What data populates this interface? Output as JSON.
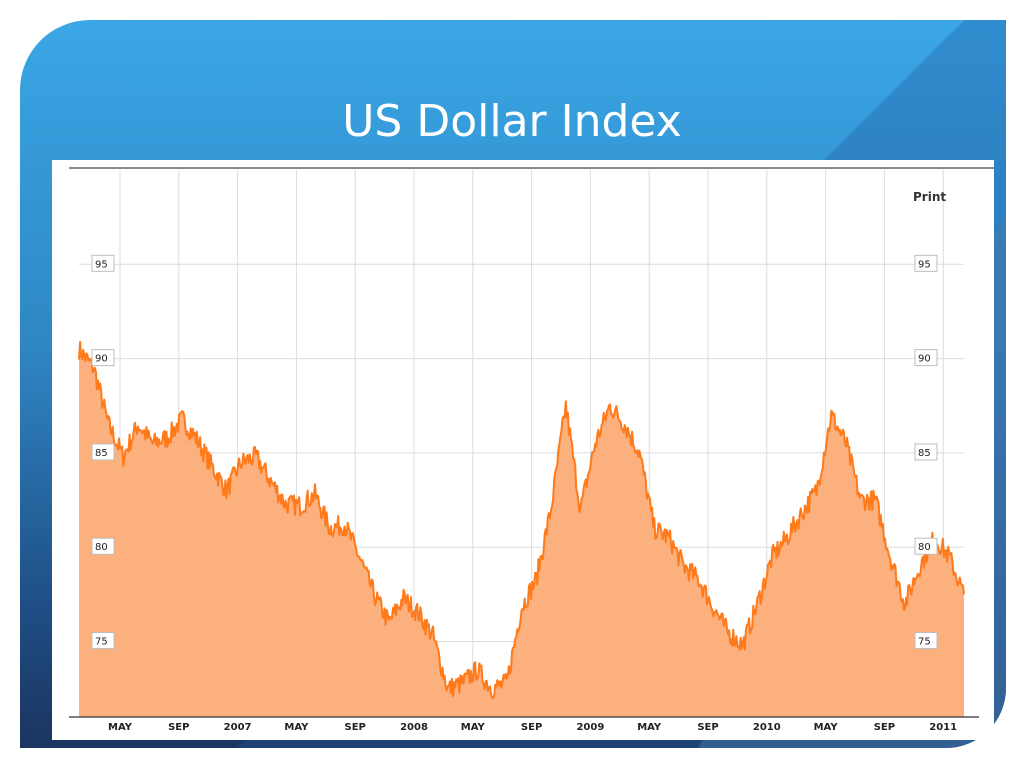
{
  "slide": {
    "title": "US Dollar Index"
  },
  "chart_data": {
    "type": "area",
    "title": "US Dollar Index",
    "xlabel": "",
    "ylabel": "",
    "ylim": [
      71,
      100
    ],
    "x_ticks": [
      "MAY",
      "SEP",
      "2007",
      "MAY",
      "SEP",
      "2008",
      "MAY",
      "SEP",
      "2009",
      "MAY",
      "SEP",
      "2010",
      "MAY",
      "SEP",
      "2011"
    ],
    "y_ticks": [
      95,
      90,
      85,
      80,
      75
    ],
    "grid": true,
    "print_label": "Print",
    "series": [
      {
        "color": "#ff7a1a",
        "fill": "#fbb07e",
        "x": [
          "Feb 2006",
          "Mar 2006",
          "Apr 2006",
          "May 2006",
          "Jun 2006",
          "Jul 2006",
          "Aug 2006",
          "Sep 2006",
          "Oct 2006",
          "Nov 2006",
          "Dec 2006",
          "Jan 2007",
          "Feb 2007",
          "Mar 2007",
          "Apr 2007",
          "May 2007",
          "Jun 2007",
          "Jul 2007",
          "Aug 2007",
          "Sep 2007",
          "Oct 2007",
          "Nov 2007",
          "Dec 2007",
          "Jan 2008",
          "Feb 2008",
          "Mar 2008",
          "Apr 2008",
          "May 2008",
          "Jun 2008",
          "Jul 2008",
          "Aug 2008",
          "Sep 2008",
          "Oct 2008",
          "Nov 2008",
          "Dec 2008",
          "Jan 2009",
          "Feb 2009",
          "Mar 2009",
          "Apr 2009",
          "May 2009",
          "Jun 2009",
          "Jul 2009",
          "Aug 2009",
          "Sep 2009",
          "Oct 2009",
          "Nov 2009",
          "Dec 2009",
          "Jan 2010",
          "Feb 2010",
          "Mar 2010",
          "Apr 2010",
          "May 2010",
          "Jun 2010",
          "Jul 2010",
          "Aug 2010",
          "Sep 2010",
          "Oct 2010",
          "Nov 2010",
          "Dec 2010",
          "Jan 2011",
          "Feb 2011"
        ],
        "values": [
          90.5,
          89.5,
          86.5,
          84.8,
          86.5,
          85.5,
          85.8,
          86.8,
          85.7,
          84.3,
          83.0,
          84.5,
          84.8,
          83.5,
          82.3,
          82.2,
          82.8,
          81.0,
          81.2,
          79.5,
          77.5,
          76.0,
          77.3,
          76.5,
          75.3,
          72.5,
          72.8,
          73.5,
          72.5,
          72.8,
          76.8,
          78.3,
          82.0,
          87.5,
          82.0,
          85.5,
          87.5,
          86.5,
          85.0,
          81.0,
          80.5,
          79.0,
          78.3,
          76.8,
          75.5,
          74.8,
          77.0,
          79.5,
          80.5,
          81.8,
          83.0,
          87.0,
          85.5,
          82.5,
          82.5,
          79.5,
          77.0,
          79.0,
          80.5,
          79.5,
          77.5
        ]
      }
    ]
  }
}
